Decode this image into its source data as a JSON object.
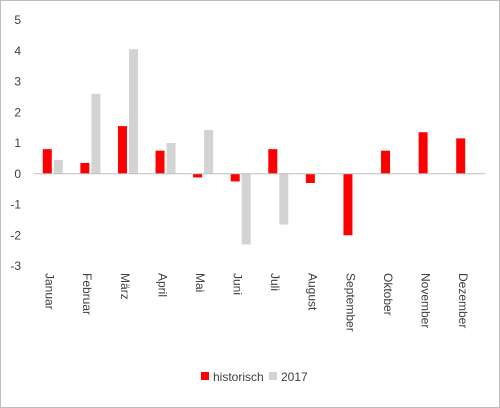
{
  "chart_data": {
    "type": "bar",
    "categories": [
      "Januar",
      "Februar",
      "März",
      "April",
      "Mai",
      "Juni",
      "Juli",
      "August",
      "September",
      "Oktober",
      "November",
      "Dezember"
    ],
    "series": [
      {
        "name": "historisch",
        "color": "#ff0000",
        "values": [
          0.8,
          0.35,
          1.55,
          0.75,
          -0.12,
          -0.25,
          0.8,
          -0.3,
          -2.0,
          0.75,
          1.35,
          1.15
        ]
      },
      {
        "name": "2017",
        "color": "#d3d3d3",
        "values": [
          0.45,
          2.6,
          4.05,
          1.0,
          1.42,
          -2.3,
          -1.65,
          null,
          null,
          null,
          null,
          null
        ]
      }
    ],
    "title": "",
    "xlabel": "",
    "ylabel": "",
    "ylim": [
      -3,
      5
    ],
    "yticks": [
      -3,
      -2,
      -1,
      0,
      1,
      2,
      3,
      4,
      5
    ],
    "ytick_labels": [
      "-3",
      "-2",
      "-1",
      "0",
      "1",
      "2",
      "3",
      "4",
      "5"
    ],
    "grid": false,
    "legend_position": "bottom"
  }
}
